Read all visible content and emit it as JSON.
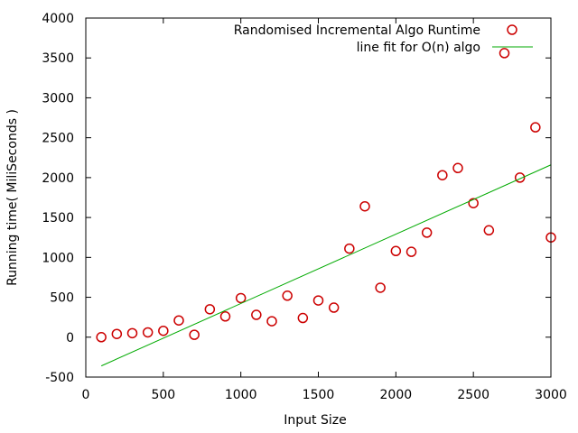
{
  "chart_data": {
    "type": "scatter",
    "xlabel": "Input Size",
    "ylabel": "Running time( MiliSeconds )",
    "xlim": [
      0,
      3000
    ],
    "ylim": [
      -500,
      4000
    ],
    "xticks": [
      0,
      500,
      1000,
      1500,
      2000,
      2500,
      3000
    ],
    "yticks": [
      -500,
      0,
      500,
      1000,
      1500,
      2000,
      2500,
      3000,
      3500,
      4000
    ],
    "grid": false,
    "legend_position": "top-right",
    "series": [
      {
        "name": "Randomised Incremental Algo Runtime",
        "kind": "points",
        "marker": "circle",
        "color": "#cc0000",
        "points": [
          [
            100,
            0
          ],
          [
            200,
            40
          ],
          [
            300,
            50
          ],
          [
            400,
            60
          ],
          [
            500,
            80
          ],
          [
            600,
            210
          ],
          [
            700,
            30
          ],
          [
            800,
            350
          ],
          [
            900,
            260
          ],
          [
            1000,
            490
          ],
          [
            1100,
            280
          ],
          [
            1200,
            200
          ],
          [
            1300,
            520
          ],
          [
            1400,
            240
          ],
          [
            1500,
            460
          ],
          [
            1600,
            370
          ],
          [
            1700,
            1110
          ],
          [
            1800,
            1640
          ],
          [
            1900,
            620
          ],
          [
            2000,
            1080
          ],
          [
            2100,
            1070
          ],
          [
            2200,
            1310
          ],
          [
            2300,
            2030
          ],
          [
            2400,
            2120
          ],
          [
            2500,
            1680
          ],
          [
            2600,
            1340
          ],
          [
            2700,
            3560
          ],
          [
            2800,
            2000
          ],
          [
            2900,
            2630
          ],
          [
            3000,
            1250
          ]
        ]
      },
      {
        "name": "line fit for O(n) algo",
        "kind": "line",
        "color": "#00aa00",
        "points": [
          [
            100,
            -360
          ],
          [
            3000,
            2160
          ]
        ]
      }
    ]
  }
}
